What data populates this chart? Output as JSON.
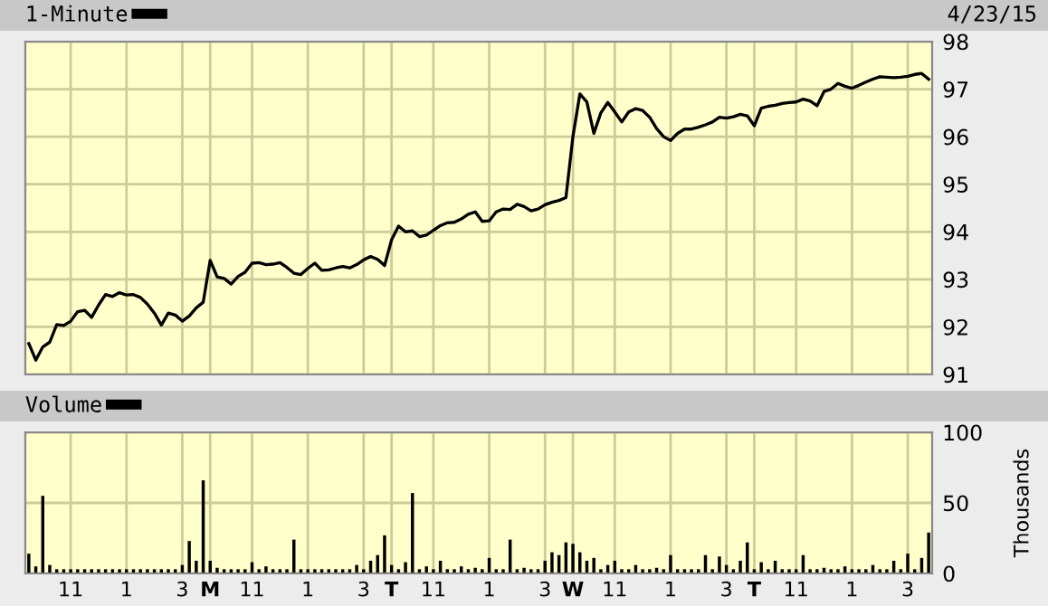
{
  "chart_data": [
    {
      "type": "line",
      "subtitle": "4/23/15",
      "legend": "top left",
      "grid": true,
      "tick_labels": "y",
      "categories": [
        null,
        null,
        null,
        null,
        null,
        null,
        null,
        null,
        null,
        null,
        null,
        null,
        null,
        null,
        null,
        null,
        null,
        null,
        null,
        null,
        null,
        null,
        null,
        null,
        null,
        null,
        null,
        null,
        null,
        null,
        null,
        null,
        null,
        null,
        null,
        null,
        null,
        null,
        null,
        null,
        null,
        null,
        null,
        null,
        null,
        null,
        null,
        null,
        null,
        null,
        null,
        null,
        null,
        null,
        null,
        null,
        null,
        null,
        null,
        null,
        null,
        null,
        null,
        null,
        null,
        null,
        null,
        null,
        null,
        null,
        null,
        null,
        null,
        null,
        null,
        null,
        null,
        null,
        null,
        null,
        null,
        null,
        null,
        null,
        null,
        null,
        null,
        null,
        null,
        null,
        null,
        null,
        null,
        null,
        null,
        null,
        null,
        null,
        null,
        null,
        null,
        null,
        null,
        null,
        null,
        null,
        null,
        null,
        null,
        null,
        null,
        null,
        null,
        null,
        null,
        null,
        null,
        null,
        null,
        null,
        null,
        null,
        null,
        null,
        null,
        null,
        null,
        null,
        null,
        null
      ],
      "ylim": [
        91,
        98
      ],
      "yticks": [
        91,
        92,
        93,
        94,
        95,
        96,
        97,
        98
      ],
      "series": [
        {
          "name": "1-Minute",
          "color": "#000000",
          "values": [
            91.65,
            91.3,
            91.58,
            91.68,
            92.05,
            92.03,
            92.12,
            92.32,
            92.35,
            92.2,
            92.46,
            92.68,
            92.64,
            92.72,
            92.67,
            92.68,
            92.62,
            92.48,
            92.29,
            92.04,
            92.29,
            92.25,
            92.12,
            92.23,
            92.4,
            92.52,
            93.4,
            93.05,
            93.02,
            92.9,
            93.06,
            93.15,
            93.34,
            93.35,
            93.31,
            93.32,
            93.35,
            93.25,
            93.13,
            93.1,
            93.23,
            93.34,
            93.19,
            93.2,
            93.24,
            93.27,
            93.24,
            93.31,
            93.41,
            93.48,
            93.42,
            93.29,
            93.83,
            94.12,
            94.0,
            94.02,
            93.9,
            93.93,
            94.03,
            94.13,
            94.19,
            94.2,
            94.27,
            94.37,
            94.42,
            94.22,
            94.23,
            94.42,
            94.48,
            94.47,
            94.58,
            94.53,
            94.44,
            94.48,
            94.57,
            94.62,
            94.66,
            94.72,
            96.0,
            96.9,
            96.73,
            96.07,
            96.5,
            96.72,
            96.52,
            96.31,
            96.52,
            96.59,
            96.55,
            96.41,
            96.17,
            96.0,
            95.92,
            96.07,
            96.16,
            96.16,
            96.2,
            96.25,
            96.31,
            96.41,
            96.39,
            96.42,
            96.47,
            96.44,
            96.23,
            96.6,
            96.64,
            96.66,
            96.7,
            96.72,
            96.73,
            96.79,
            96.75,
            96.65,
            96.95,
            97.0,
            97.12,
            97.06,
            97.02,
            97.08,
            97.15,
            97.21,
            97.26,
            97.25,
            97.24,
            97.25,
            97.27,
            97.31,
            97.33,
            97.21
          ]
        }
      ]
    },
    {
      "type": "bar",
      "legend": "top left",
      "grid": true,
      "ylabel": "Thousands",
      "categories": [
        null,
        null,
        null,
        null,
        null,
        null,
        "11",
        null,
        null,
        null,
        null,
        null,
        null,
        null,
        "1",
        null,
        null,
        null,
        null,
        null,
        null,
        null,
        "3",
        null,
        null,
        null,
        "M",
        null,
        null,
        null,
        null,
        null,
        "11",
        null,
        null,
        null,
        null,
        null,
        null,
        null,
        "1",
        null,
        null,
        null,
        null,
        null,
        null,
        null,
        "3",
        null,
        null,
        null,
        "T",
        null,
        null,
        null,
        null,
        null,
        "11",
        null,
        null,
        null,
        null,
        null,
        null,
        null,
        "1",
        null,
        null,
        null,
        null,
        null,
        null,
        null,
        "3",
        null,
        null,
        null,
        "W",
        null,
        null,
        null,
        null,
        null,
        "11",
        null,
        null,
        null,
        null,
        null,
        null,
        null,
        "1",
        null,
        null,
        null,
        null,
        null,
        null,
        null,
        "3",
        null,
        null,
        null,
        "T",
        null,
        null,
        null,
        null,
        null,
        "11",
        null,
        null,
        null,
        null,
        null,
        null,
        null,
        "1",
        null,
        null,
        null,
        null,
        null,
        null,
        null,
        "3",
        null,
        null,
        null
      ],
      "ylim": [
        0,
        100
      ],
      "yticks": [
        0,
        50,
        100
      ],
      "series": [
        {
          "name": "Volume",
          "color": "#000000",
          "values": [
            14,
            5,
            55,
            6,
            3,
            3,
            3,
            3,
            3,
            3,
            3,
            3,
            3,
            3,
            3,
            3,
            3,
            3,
            3,
            3,
            3,
            3,
            6,
            23,
            9,
            66,
            9,
            4,
            3,
            3,
            3,
            3,
            8,
            3,
            5,
            3,
            3,
            3,
            24,
            3,
            3,
            3,
            3,
            3,
            3,
            3,
            3,
            6,
            3,
            9,
            13,
            27,
            6,
            3,
            8,
            57,
            3,
            5,
            3,
            9,
            3,
            3,
            5,
            3,
            4,
            3,
            11,
            3,
            3,
            24,
            3,
            4,
            3,
            3,
            9,
            15,
            13,
            22,
            21,
            15,
            9,
            11,
            3,
            6,
            9,
            3,
            3,
            6,
            3,
            3,
            4,
            3,
            13,
            3,
            3,
            3,
            3,
            13,
            3,
            12,
            6,
            3,
            9,
            22,
            3,
            8,
            3,
            9,
            3,
            3,
            3,
            13,
            3,
            3,
            4,
            3,
            3,
            5,
            3,
            3,
            3,
            6,
            3,
            3,
            9,
            3,
            14,
            3,
            11,
            29
          ]
        }
      ]
    }
  ]
}
